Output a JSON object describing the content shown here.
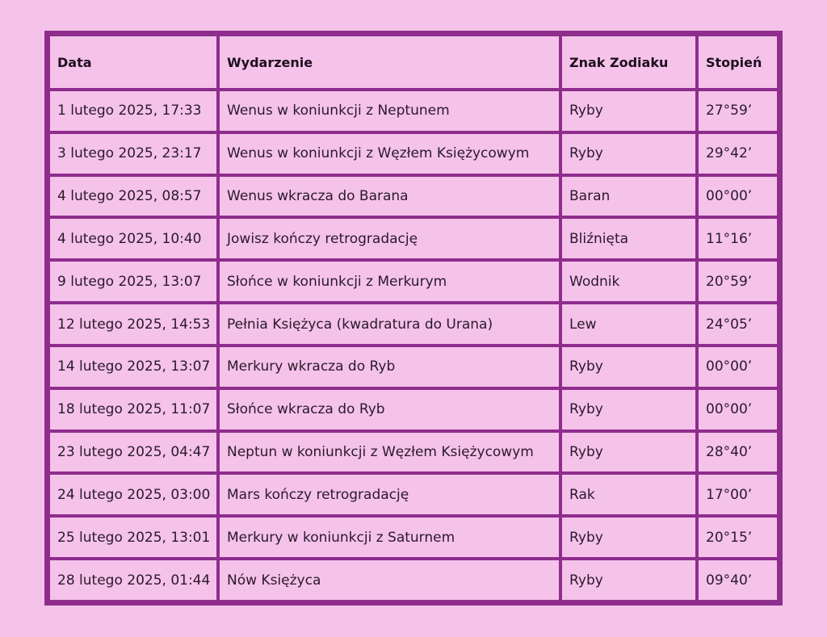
{
  "table": {
    "headers": {
      "date": "Data",
      "event": "Wydarzenie",
      "sign": "Znak Zodiaku",
      "degree": "Stopień"
    },
    "rows": [
      {
        "date": "1 lutego 2025, 17:33",
        "event": "Wenus w koniunkcji z Neptunem",
        "sign": "Ryby",
        "degree": "27°59’"
      },
      {
        "date": "3 lutego 2025, 23:17",
        "event": "Wenus w koniunkcji z Węzłem Księżycowym",
        "sign": "Ryby",
        "degree": "29°42’"
      },
      {
        "date": "4 lutego 2025, 08:57",
        "event": "Wenus wkracza do Barana",
        "sign": "Baran",
        "degree": "00°00’"
      },
      {
        "date": "4 lutego 2025, 10:40",
        "event": "Jowisz kończy retrogradację",
        "sign": "Bliźnięta",
        "degree": "11°16’"
      },
      {
        "date": "9 lutego 2025, 13:07",
        "event": "Słońce w koniunkcji z Merkurym",
        "sign": "Wodnik",
        "degree": "20°59’"
      },
      {
        "date": "12 lutego 2025, 14:53",
        "event": "Pełnia Księżyca (kwadratura do Urana)",
        "sign": "Lew",
        "degree": "24°05’"
      },
      {
        "date": "14 lutego 2025, 13:07",
        "event": "Merkury wkracza do Ryb",
        "sign": "Ryby",
        "degree": "00°00’"
      },
      {
        "date": "18 lutego 2025, 11:07",
        "event": "Słońce wkracza do Ryb",
        "sign": "Ryby",
        "degree": "00°00’"
      },
      {
        "date": "23 lutego 2025, 04:47",
        "event": "Neptun w koniunkcji z Węzłem Księżycowym",
        "sign": "Ryby",
        "degree": "28°40’"
      },
      {
        "date": "24 lutego 2025, 03:00",
        "event": "Mars kończy retrogradację",
        "sign": "Rak",
        "degree": "17°00’"
      },
      {
        "date": "25 lutego 2025, 13:01",
        "event": "Merkury w koniunkcji z Saturnem",
        "sign": "Ryby",
        "degree": "20°15’"
      },
      {
        "date": "28 lutego 2025, 01:44",
        "event": "Nów Księżyca",
        "sign": "Ryby",
        "degree": "09°40’"
      }
    ]
  },
  "colors": {
    "background": "#f5c2ea",
    "border": "#8e2d8c"
  }
}
